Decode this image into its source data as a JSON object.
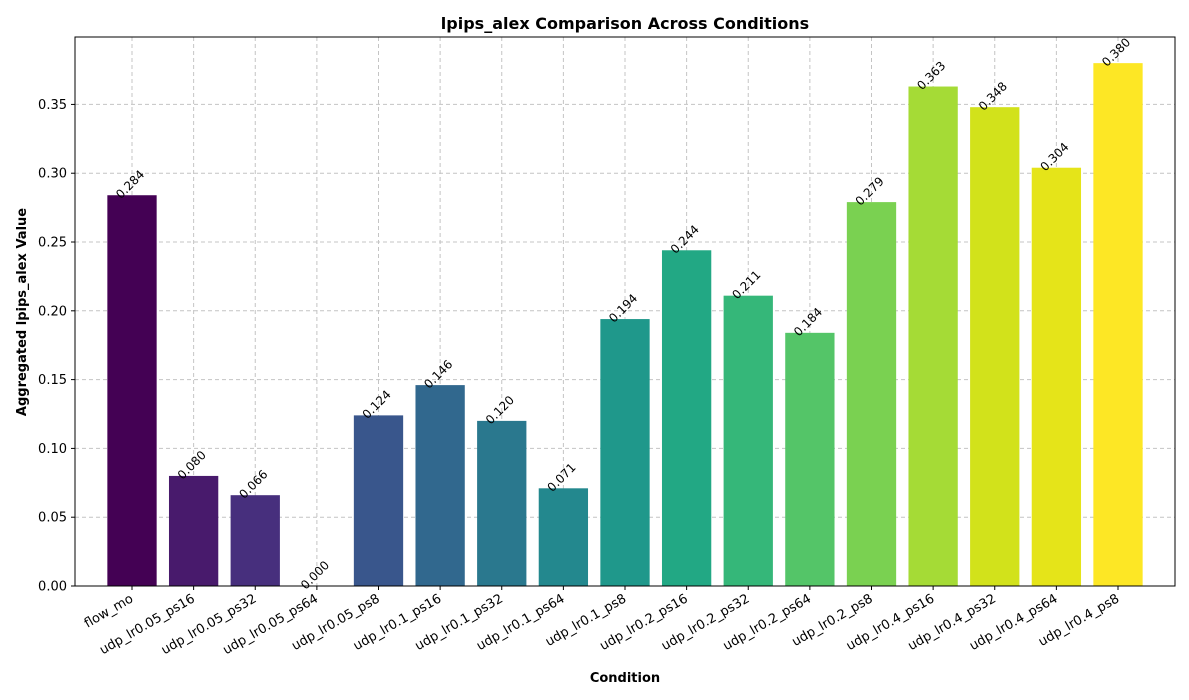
{
  "chart_data": {
    "type": "bar",
    "title": "lpips_alex Comparison Across Conditions",
    "xlabel": "Condition",
    "ylabel": "Aggregated lpips_alex Value",
    "ylim": [
      0,
      0.399
    ],
    "yticks": [
      "0.00",
      "0.05",
      "0.10",
      "0.15",
      "0.20",
      "0.25",
      "0.30",
      "0.35"
    ],
    "grid": true,
    "colormap": "viridis",
    "categories": [
      "flow_mo",
      "udp_lr0.05_ps16",
      "udp_lr0.05_ps32",
      "udp_lr0.05_ps64",
      "udp_lr0.05_ps8",
      "udp_lr0.1_ps16",
      "udp_lr0.1_ps32",
      "udp_lr0.1_ps64",
      "udp_lr0.1_ps8",
      "udp_lr0.2_ps16",
      "udp_lr0.2_ps32",
      "udp_lr0.2_ps64",
      "udp_lr0.2_ps8",
      "udp_lr0.4_ps16",
      "udp_lr0.4_ps32",
      "udp_lr0.4_ps64",
      "udp_lr0.4_ps8"
    ],
    "values": [
      0.284,
      0.08,
      0.066,
      0.0,
      0.124,
      0.146,
      0.12,
      0.071,
      0.194,
      0.244,
      0.211,
      0.184,
      0.279,
      0.363,
      0.348,
      0.304,
      0.38
    ],
    "value_labels": [
      "0.284",
      "0.080",
      "0.066",
      "0.000",
      "0.124",
      "0.146",
      "0.120",
      "0.071",
      "0.194",
      "0.244",
      "0.211",
      "0.184",
      "0.279",
      "0.363",
      "0.348",
      "0.304",
      "0.380"
    ],
    "colors": [
      "#440154",
      "#481a6c",
      "#472f7d",
      "#414487",
      "#39568c",
      "#31688e",
      "#2a788e",
      "#23888e",
      "#1f988b",
      "#22a884",
      "#35b779",
      "#54c568",
      "#7ad151",
      "#a5db36",
      "#d2e21b",
      "#e5e419",
      "#fde725"
    ]
  }
}
